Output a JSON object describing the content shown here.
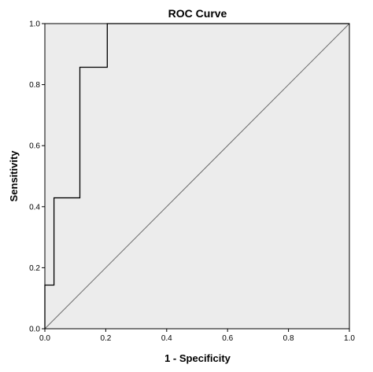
{
  "chart_data": {
    "type": "line",
    "title": "ROC Curve",
    "xlabel": "1 - Specificity",
    "ylabel": "Sensitivity",
    "xlim": [
      0,
      1
    ],
    "ylim": [
      0,
      1
    ],
    "x_ticks": [
      "0.0",
      "0.2",
      "0.4",
      "0.6",
      "0.8",
      "1.0"
    ],
    "y_ticks": [
      "0.0",
      "0.2",
      "0.4",
      "0.6",
      "0.8",
      "1.0"
    ],
    "grid": false,
    "legend": "none",
    "series": [
      {
        "kind": "step",
        "x": [
          0.0,
          0.0,
          0.03,
          0.03,
          0.115,
          0.115,
          0.205,
          0.205,
          1.0
        ],
        "y": [
          0.0,
          0.143,
          0.143,
          0.429,
          0.429,
          0.857,
          0.857,
          1.0,
          1.0
        ]
      },
      {
        "kind": "reference",
        "x": [
          0.0,
          1.0
        ],
        "y": [
          0.0,
          1.0
        ]
      }
    ],
    "colors": {
      "plot_background": "#ececec",
      "curve": "#000000",
      "reference": "#6b6b6b",
      "frame": "#000000"
    }
  }
}
